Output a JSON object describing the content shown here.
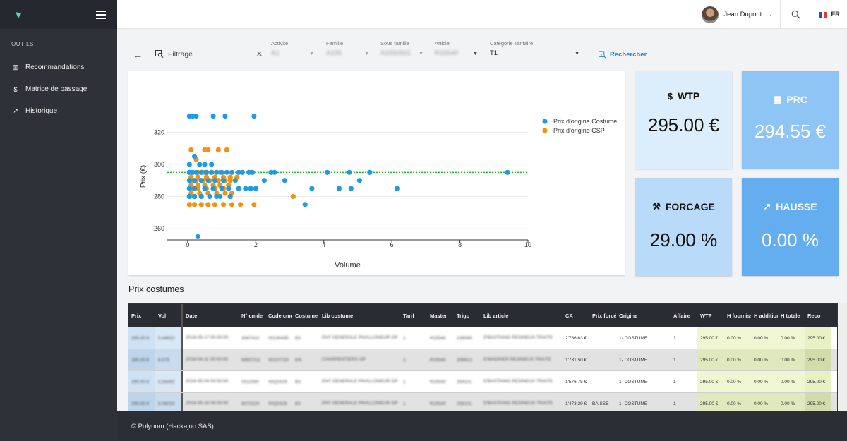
{
  "sidebar": {
    "section": "OUTILS",
    "items": [
      {
        "label": "Recommandations",
        "icon": "chart-icon"
      },
      {
        "label": "Matrice de passage",
        "icon": "dollar-icon"
      },
      {
        "label": "Historique",
        "icon": "trend-icon"
      }
    ]
  },
  "header": {
    "user": "Jean Dupont",
    "lang": "FR"
  },
  "filters": {
    "filter_label": "Filtrage",
    "selects": [
      {
        "label": "Activité",
        "value": "A1"
      },
      {
        "label": "Famille",
        "value": "A155"
      },
      {
        "label": "Sous famille",
        "value": "A1550501"
      },
      {
        "label": "Article",
        "value": "R15540"
      },
      {
        "label": "Catégorie Tarifaire",
        "value": "T1"
      }
    ],
    "search_label": "Rechercher"
  },
  "kpis": {
    "wtp": {
      "title": "WTP",
      "value": "295.00 €"
    },
    "prc": {
      "title": "PRC",
      "value": "294.55 €"
    },
    "forcage": {
      "title": "FORCAGE",
      "value": "29.00 %"
    },
    "hausse": {
      "title": "HAUSSE",
      "value": "0.00 %"
    }
  },
  "chart_data": {
    "type": "scatter",
    "xlabel": "Volume",
    "ylabel": "Prix (€)",
    "xlim": [
      -0.6,
      10
    ],
    "ylim": [
      253,
      332
    ],
    "xticks": [
      0,
      2,
      4,
      6,
      8,
      10
    ],
    "yticks": [
      260,
      280,
      300,
      320
    ],
    "reference_line": 295,
    "legend_position": "right",
    "series": [
      {
        "name": "Prix d'origine Costume",
        "color": "#1e9be3",
        "points": [
          [
            0.05,
            330
          ],
          [
            0.15,
            330
          ],
          [
            0.25,
            330
          ],
          [
            0.75,
            330
          ],
          [
            1.1,
            330
          ],
          [
            1.95,
            330
          ],
          [
            0.05,
            300
          ],
          [
            0.2,
            305
          ],
          [
            0.35,
            300
          ],
          [
            0.5,
            300
          ],
          [
            0.7,
            300
          ],
          [
            0.05,
            295
          ],
          [
            0.15,
            295
          ],
          [
            0.25,
            295
          ],
          [
            0.4,
            295
          ],
          [
            0.55,
            295
          ],
          [
            0.7,
            295
          ],
          [
            0.85,
            295
          ],
          [
            1.0,
            295
          ],
          [
            1.15,
            295
          ],
          [
            1.3,
            295
          ],
          [
            1.5,
            295
          ],
          [
            1.6,
            295
          ],
          [
            1.8,
            295
          ],
          [
            1.9,
            295
          ],
          [
            2.45,
            295
          ],
          [
            2.55,
            295
          ],
          [
            4.1,
            295
          ],
          [
            4.75,
            295
          ],
          [
            5.35,
            295
          ],
          [
            9.4,
            295
          ],
          [
            0.05,
            290
          ],
          [
            0.2,
            290
          ],
          [
            0.4,
            290
          ],
          [
            0.6,
            290
          ],
          [
            0.8,
            290
          ],
          [
            1.05,
            290
          ],
          [
            1.4,
            290
          ],
          [
            2.25,
            290
          ],
          [
            2.85,
            290
          ],
          [
            5.05,
            290
          ],
          [
            0.05,
            285
          ],
          [
            0.2,
            285
          ],
          [
            0.5,
            285
          ],
          [
            0.75,
            285
          ],
          [
            1.0,
            285
          ],
          [
            1.2,
            285
          ],
          [
            1.5,
            285
          ],
          [
            1.7,
            285
          ],
          [
            1.85,
            285
          ],
          [
            2.0,
            285
          ],
          [
            3.65,
            285
          ],
          [
            4.45,
            285
          ],
          [
            4.8,
            285
          ],
          [
            6.15,
            285
          ],
          [
            0.05,
            280
          ],
          [
            0.2,
            280
          ],
          [
            0.4,
            280
          ],
          [
            0.65,
            280
          ],
          [
            0.85,
            280
          ],
          [
            0.95,
            280
          ],
          [
            1.25,
            280
          ],
          [
            3.45,
            275
          ],
          [
            0.3,
            255
          ]
        ]
      },
      {
        "name": "Prix d'origine CSP",
        "color": "#f5910d",
        "points": [
          [
            0.1,
            309
          ],
          [
            0.5,
            309
          ],
          [
            0.6,
            309
          ],
          [
            0.9,
            309
          ],
          [
            1.15,
            309
          ],
          [
            0.25,
            303
          ],
          [
            0.1,
            295
          ],
          [
            0.3,
            295
          ],
          [
            0.5,
            295
          ],
          [
            0.7,
            295
          ],
          [
            0.95,
            295
          ],
          [
            0.1,
            292
          ],
          [
            0.3,
            292
          ],
          [
            0.55,
            292
          ],
          [
            0.8,
            292
          ],
          [
            1.05,
            292
          ],
          [
            1.25,
            292
          ],
          [
            1.45,
            292
          ],
          [
            0.1,
            290
          ],
          [
            0.25,
            290
          ],
          [
            0.45,
            290
          ],
          [
            0.65,
            290
          ],
          [
            0.9,
            290
          ],
          [
            1.1,
            290
          ],
          [
            1.25,
            290
          ],
          [
            0.1,
            287
          ],
          [
            0.3,
            287
          ],
          [
            0.5,
            287
          ],
          [
            0.75,
            287
          ],
          [
            0.95,
            287
          ],
          [
            1.2,
            287
          ],
          [
            0.1,
            285
          ],
          [
            0.3,
            285
          ],
          [
            0.55,
            285
          ],
          [
            0.8,
            285
          ],
          [
            1.05,
            285
          ],
          [
            0.1,
            282
          ],
          [
            0.35,
            282
          ],
          [
            0.6,
            282
          ],
          [
            0.85,
            282
          ],
          [
            1.1,
            282
          ],
          [
            1.3,
            282
          ],
          [
            0.05,
            275
          ],
          [
            0.2,
            275
          ],
          [
            0.4,
            275
          ],
          [
            0.6,
            275
          ],
          [
            0.8,
            275
          ],
          [
            1.05,
            275
          ],
          [
            1.3,
            275
          ],
          [
            1.55,
            275
          ],
          [
            1.95,
            275
          ],
          [
            3.1,
            280
          ]
        ]
      }
    ]
  },
  "table": {
    "title": "Prix costumes",
    "columns": [
      "Prix",
      "Vol",
      "Date",
      "N° cmde",
      "Code cmde",
      "Costume",
      "Lib costume",
      "Tarif",
      "Master",
      "Trigo",
      "Lib article",
      "CA",
      "Prix forcé",
      "Origine",
      "Affaire",
      "WTP",
      "H fournisseur",
      "H additionnelle",
      "H totale",
      "Reco"
    ],
    "rows": [
      {
        "prix": "295.00 €",
        "vol": "0.44622",
        "date": "2018-05-17 00:00:00",
        "ncmde": "3087410",
        "code": "00130495",
        "costume": "B3",
        "libcostume": "ENT GENERALE PAVILLONEUR GP",
        "tarif": "1",
        "master": "R15540",
        "trigo": "239099",
        "libarticle": "D'BASTAING RESINEUX TRAITE",
        "ca": "2'786.63 €",
        "prixforce": "",
        "origine": "1- COSTUME",
        "affaire": "1",
        "wtp": "295.00 €",
        "hf": "0.00 %",
        "ha": "0.00 %",
        "ht": "0.00 %",
        "reco": "295.00 €"
      },
      {
        "prix": "285.00 €",
        "vol": "6.075",
        "date": "2018-04-11 00:00:00",
        "ncmde": "W857311",
        "code": "00107720",
        "costume": "EN",
        "libcostume": "CHARPENTIERS GP",
        "tarif": "1",
        "master": "R15540",
        "trigo": "258813",
        "libarticle": "D'MADRIER RESINEUX TRAITE",
        "ca": "1'731.50 €",
        "prixforce": "",
        "origine": "1- COSTUME",
        "affaire": "1",
        "wtp": "295.00 €",
        "hf": "0.00 %",
        "ha": "0.00 %",
        "ht": "0.00 %",
        "reco": "295.00 €"
      },
      {
        "prix": "295.00 €",
        "vol": "0.34492",
        "date": "2018-05-04 00:00:00",
        "ncmde": "0011590",
        "code": "00Q0429",
        "costume": "B3",
        "libcostume": "ENT GENERALE PAVILLONEUR GP",
        "tarif": "1",
        "master": "R15540",
        "trigo": "259101",
        "libarticle": "D'BASTAING RESINEUX TRAITE",
        "ca": "1'576.75 €",
        "prixforce": "",
        "origine": "1- COSTUME",
        "affaire": "1",
        "wtp": "295.00 €",
        "hf": "0.00 %",
        "ha": "0.00 %",
        "ht": "0.00 %",
        "reco": "295.00 €"
      },
      {
        "prix": "290.00 €",
        "vol": "5.08033",
        "date": "2018-05-16 00:00:00",
        "ncmde": "8071520",
        "code": "00Q0429",
        "costume": "B3",
        "libcostume": "ENT GENERALE PAVILLONEUR GP",
        "tarif": "1",
        "master": "R15540",
        "trigo": "259101",
        "libarticle": "D'BASTAING RESINEUX TRAITE",
        "ca": "1'473.29 €",
        "prixforce": "BAISSE",
        "origine": "1- COSTUME",
        "affaire": "1",
        "wtp": "295.00 €",
        "hf": "0.00 %",
        "ha": "0.00 %",
        "ht": "0.00 %",
        "reco": "295.00 €"
      }
    ]
  },
  "footer": "© Polynom (Hackajoo SAS)"
}
